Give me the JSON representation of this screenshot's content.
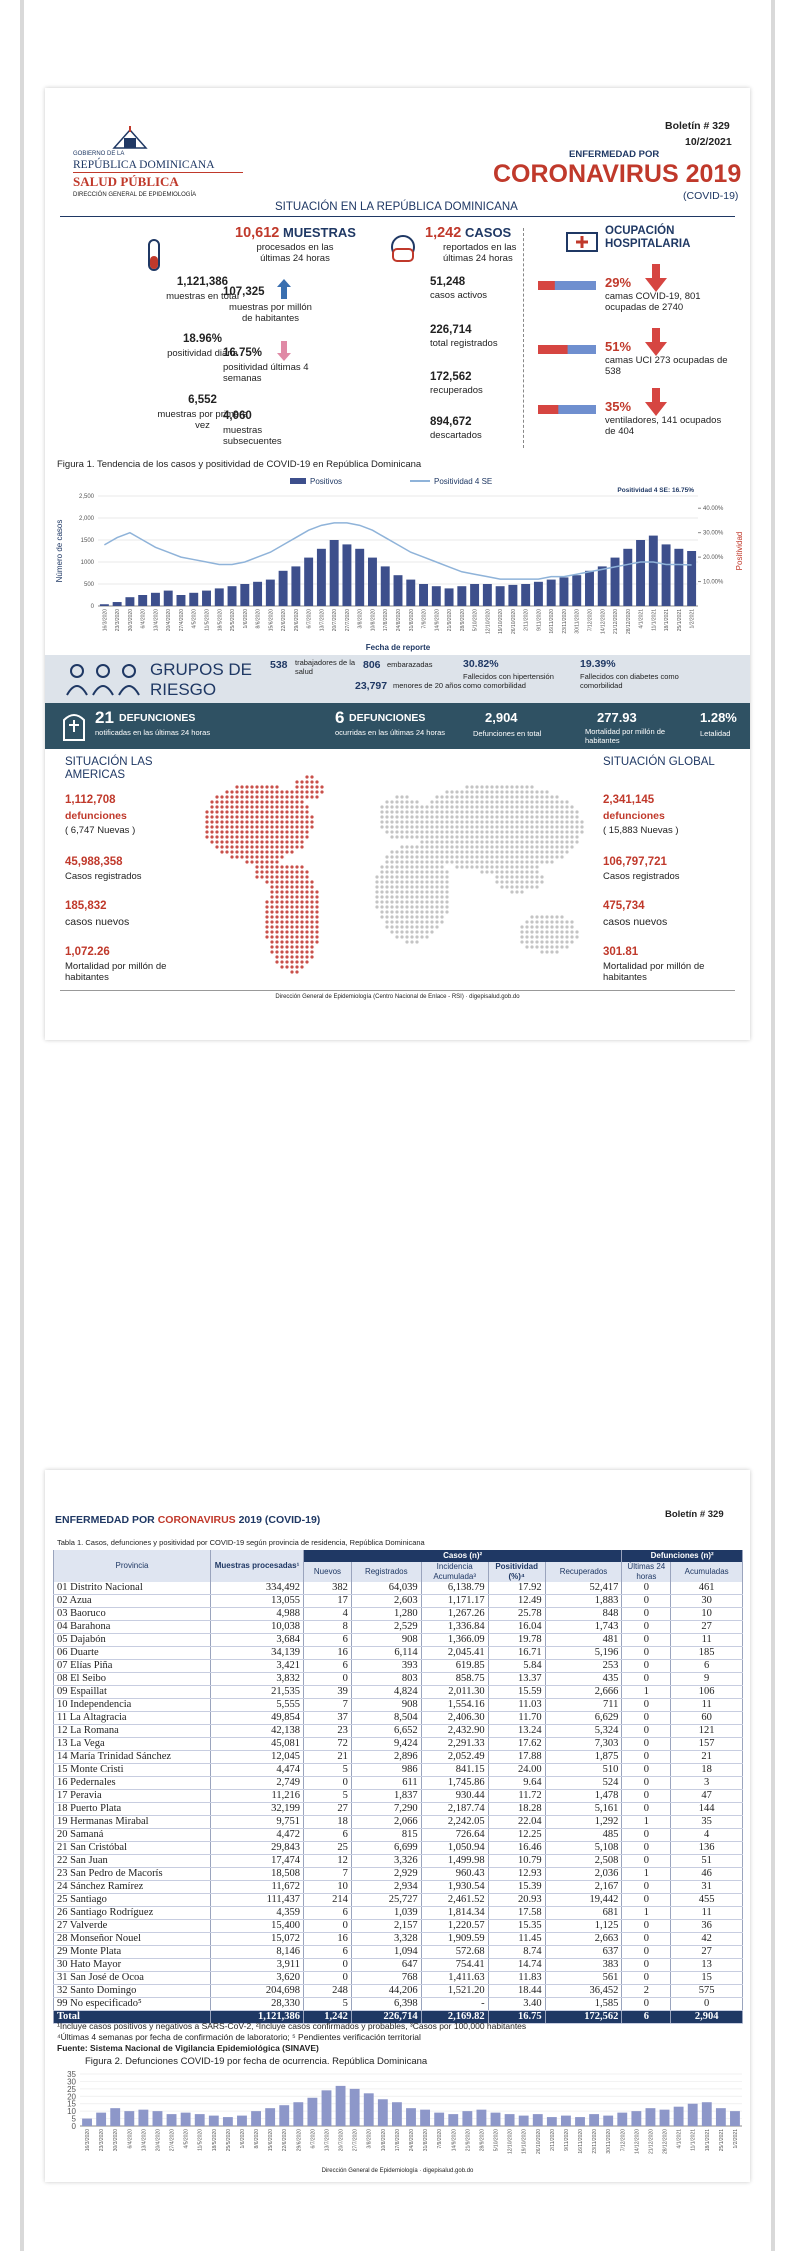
{
  "page1": {
    "header": {
      "gov_line1": "GOBIERNO DE LA",
      "gov_line2": "REPÚBLICA DOMINICANA",
      "gov_line3": "SALUD PÚBLICA",
      "gov_line4": "DIRECCIÓN GENERAL DE EPIDEMIOLOGÍA",
      "bulletin": "Boletín # 329",
      "date": "10/2/2021",
      "kicker": "ENFERMEDAD POR",
      "title": "CORONAVIRUS 2019",
      "subtitle": "(COVID-19)",
      "section": "SITUACIÓN EN LA REPÚBLICA DOMINICANA"
    },
    "samples": {
      "headline": "10,612",
      "headline_label": "MUESTRAS",
      "headline_sub": "procesados en las últimas 24 horas",
      "total": "1,121,386",
      "total_label": "muestras en total",
      "per_million": "107,325",
      "per_million_label": "muestras por millón de habitantes",
      "daily_positivity": "18.96%",
      "daily_positivity_label": "positividad diaria",
      "positivity_4w": "16.75%",
      "positivity_4w_label": "positividad últimas 4 semanas",
      "first_time": "6,552",
      "first_time_label": "muestras por primera vez",
      "subsequent": "4,060",
      "subsequent_label": "muestras subsecuentes"
    },
    "cases": {
      "headline": "1,242",
      "headline_label": "CASOS",
      "headline_sub": "reportados en las últimas 24 horas",
      "active": "51,248",
      "active_label": "casos activos",
      "total": "226,714",
      "total_label": "total registrados",
      "recovered": "172,562",
      "recovered_label": "recuperados",
      "discarded": "894,672",
      "discarded_label": "descartados"
    },
    "hospital": {
      "title": "OCUPACIÓN HOSPITALARIA",
      "items": [
        {
          "pct": {
            "value": 29,
            "label": "29%"
          },
          "text": "camas COVID-19, 801 ocupadas de 2740"
        },
        {
          "pct": {
            "value": 51,
            "label": "51%"
          },
          "text": "camas UCI 273 ocupadas de 538"
        },
        {
          "pct": {
            "value": 35,
            "label": "35%"
          },
          "text": "ventiladores, 141 ocupados de 404"
        }
      ]
    },
    "figure1": {
      "type": "bar",
      "caption": "Figura 1. Tendencia de los casos y positividad de COVID-19 en República Dominicana",
      "y_label": "Número de casos",
      "x_label": "Fecha de reporte",
      "y2_label": "Positividad",
      "annotation": "Positividad 4 SE: 16.75%",
      "categories": [
        "16/3/2020",
        "23/3/2020",
        "30/3/2020",
        "6/4/2020",
        "13/4/2020",
        "20/4/2020",
        "27/4/2020",
        "4/5/2020",
        "11/5/2020",
        "18/5/2020",
        "25/5/2020",
        "1/6/2020",
        "8/6/2020",
        "15/6/2020",
        "22/6/2020",
        "29/6/2020",
        "6/7/2020",
        "13/7/2020",
        "20/7/2020",
        "27/7/2020",
        "3/8/2020",
        "10/8/2020",
        "17/8/2020",
        "24/8/2020",
        "31/8/2020",
        "7/9/2020",
        "14/9/2020",
        "21/9/2020",
        "28/9/2020",
        "5/10/2020",
        "12/10/2020",
        "19/10/2020",
        "26/10/2020",
        "2/11/2020",
        "9/11/2020",
        "16/11/2020",
        "23/11/2020",
        "30/11/2020",
        "7/12/2020",
        "14/12/2020",
        "21/12/2020",
        "28/12/2020",
        "4/1/2021",
        "11/1/2021",
        "18/1/2021",
        "25/1/2021",
        "1/2/2021"
      ],
      "series": [
        {
          "name": "Positivos",
          "color": "#3d4f8c",
          "values": [
            40,
            90,
            200,
            250,
            300,
            350,
            250,
            300,
            350,
            400,
            450,
            500,
            550,
            600,
            800,
            900,
            1100,
            1300,
            1500,
            1400,
            1300,
            1100,
            900,
            700,
            600,
            500,
            450,
            400,
            450,
            500,
            500,
            450,
            480,
            500,
            550,
            600,
            650,
            700,
            800,
            900,
            1100,
            1300,
            1500,
            1600,
            1400,
            1300,
            1250
          ]
        },
        {
          "name": "Positividad 4 SE",
          "color": "#8fb3d9",
          "axis": "y2",
          "values": [
            25,
            28,
            30,
            27,
            24,
            22,
            20,
            19,
            18,
            17,
            17,
            18,
            20,
            22,
            25,
            28,
            31,
            33,
            34,
            34,
            33,
            31,
            28,
            25,
            22,
            20,
            18,
            16,
            14,
            13,
            12,
            11,
            11,
            11,
            11,
            12,
            12,
            13,
            14,
            15,
            16,
            17,
            18,
            18,
            17,
            17,
            16.75
          ]
        }
      ],
      "ylim": [
        0,
        2500
      ],
      "yticks": [
        0,
        500,
        1000,
        1500,
        {
          "value": 2000,
          "label": "2,000"
        },
        {
          "value": 2500,
          "label": "2,500"
        }
      ],
      "y2lim": [
        0,
        45
      ],
      "y2ticks": [
        {
          "value": 10,
          "label": "10.00%"
        },
        {
          "value": 20,
          "label": "20.00%"
        },
        {
          "value": 30,
          "label": "30.00%"
        },
        {
          "value": 40,
          "label": "40.00%"
        }
      ]
    },
    "risk_groups": {
      "title": "GRUPOS DE RIESGO",
      "health_workers": "538",
      "health_workers_label": "trabajadores de la salud",
      "pregnant": "806",
      "pregnant_label": "embarazadas",
      "under20": "23,797",
      "under20_label": "menores de 20 años",
      "hypertension": "30.82%",
      "hypertension_label": "Fallecidos con hipertensión como comorbilidad",
      "diabetes": "19.39%",
      "diabetes_label": "Fallecidos con diabetes como comorbilidad"
    },
    "deaths": {
      "notified": "21",
      "notified_title": "DEFUNCIONES",
      "notified_label": "notificadas en las últimas 24 horas",
      "occurred": "6",
      "occurred_title": "DEFUNCIONES",
      "occurred_label": "ocurridas en las últimas 24 horas",
      "total": "2,904",
      "total_label": "Defunciones en total",
      "mortality": "277.93",
      "mortality_label": "Mortalidad por millón de habitantes",
      "lethality": "1.28%",
      "lethality_label": "Letalidad"
    },
    "americas": {
      "title": "SITUACIÓN LAS AMERICAS",
      "deaths": "1,112,708",
      "deaths_label": "defunciones",
      "new_deaths": "( 6,747 Nuevas )",
      "cases": "45,988,358",
      "cases_label": "Casos registrados",
      "new_cases": "185,832",
      "new_cases_label": "casos nuevos",
      "mortality": "1,072.26",
      "mortality_label": "Mortalidad por millón de habitantes"
    },
    "global": {
      "title": "SITUACIÓN GLOBAL",
      "deaths": "2,341,145",
      "deaths_label": "defunciones",
      "new_deaths": "( 15,883 Nuevas )",
      "cases": "106,797,721",
      "cases_label": "Casos registrados",
      "new_cases": "475,734",
      "new_cases_label": "casos nuevos",
      "mortality": "301.81",
      "mortality_label": "Mortalidad por millón de habitantes"
    },
    "footer": "Dirección General de Epidemiología (Centro Nacional de Enlace - RSI) · digepisalud.gob.do"
  },
  "page2": {
    "header": {
      "part1": "ENFERMEDAD POR ",
      "part2": "CORONAVIRUS",
      "part3": " 2019 (COVID-19)",
      "bulletin": "Boletín # 329"
    },
    "table": {
      "caption": "Tabla 1. Casos, defunciones y positividad por COVID-19 según provincia de residencia, República Dominicana",
      "headers": {
        "province": "Provincia",
        "samples": "Muestras procesadas¹",
        "cases": "Casos (n)²",
        "new": "Nuevos",
        "registered": "Registrados",
        "incidence": "Incidencia Acumulada³",
        "positivity": "Positividad (%)⁴",
        "recovered": "Recuperados",
        "deaths": "Defunciones (n)²",
        "last24": "Últimas 24 horas",
        "cumulative": "Acumuladas"
      },
      "rows": [
        [
          "01 Distrito Nacional",
          "334,492",
          "382",
          "64,039",
          "6,138.79",
          "17.92",
          "52,417",
          "0",
          "461"
        ],
        [
          "02 Azua",
          "13,055",
          "17",
          "2,603",
          "1,171.17",
          "12.49",
          "1,883",
          "0",
          "30"
        ],
        [
          "03 Baoruco",
          "4,988",
          "4",
          "1,280",
          "1,267.26",
          "25.78",
          "848",
          "0",
          "10"
        ],
        [
          "04 Barahona",
          "10,038",
          "8",
          "2,529",
          "1,336.84",
          "16.04",
          "1,743",
          "0",
          "27"
        ],
        [
          "05 Dajabón",
          "3,684",
          "6",
          "908",
          "1,366.09",
          "19.78",
          "481",
          "0",
          "11"
        ],
        [
          "06 Duarte",
          "34,139",
          "16",
          "6,114",
          "2,045.41",
          "16.71",
          "5,196",
          "0",
          "185"
        ],
        [
          "07 Elías Piña",
          "3,421",
          "6",
          "393",
          "619.85",
          "5.84",
          "253",
          "0",
          "6"
        ],
        [
          "08 El Seibo",
          "3,832",
          "0",
          "803",
          "858.75",
          "13.37",
          "435",
          "0",
          "9"
        ],
        [
          "09 Espaillat",
          "21,535",
          "39",
          "4,824",
          "2,011.30",
          "15.59",
          "2,666",
          "1",
          "106"
        ],
        [
          "10 Independencia",
          "5,555",
          "7",
          "908",
          "1,554.16",
          "11.03",
          "711",
          "0",
          "11"
        ],
        [
          "11 La Altagracia",
          "49,854",
          "37",
          "8,504",
          "2,406.30",
          "11.70",
          "6,629",
          "0",
          "60"
        ],
        [
          "12 La Romana",
          "42,138",
          "23",
          "6,652",
          "2,432.90",
          "13.24",
          "5,324",
          "0",
          "121"
        ],
        [
          "13 La Vega",
          "45,081",
          "72",
          "9,424",
          "2,291.33",
          "17.62",
          "7,303",
          "0",
          "157"
        ],
        [
          "14 María Trinidad Sánchez",
          "12,045",
          "21",
          "2,896",
          "2,052.49",
          "17.88",
          "1,875",
          "0",
          "21"
        ],
        [
          "15 Monte Cristi",
          "4,474",
          "5",
          "986",
          "841.15",
          "24.00",
          "510",
          "0",
          "18"
        ],
        [
          "16 Pedernales",
          "2,749",
          "0",
          "611",
          "1,745.86",
          "9.64",
          "524",
          "0",
          "3"
        ],
        [
          "17 Peravia",
          "11,216",
          "5",
          "1,837",
          "930.44",
          "11.72",
          "1,478",
          "0",
          "47"
        ],
        [
          "18 Puerto Plata",
          "32,199",
          "27",
          "7,290",
          "2,187.74",
          "18.28",
          "5,161",
          "0",
          "144"
        ],
        [
          "19 Hermanas Mirabal",
          "9,751",
          "18",
          "2,066",
          "2,242.05",
          "22.04",
          "1,292",
          "1",
          "35"
        ],
        [
          "20 Samaná",
          "4,472",
          "6",
          "815",
          "726.64",
          "12.25",
          "485",
          "0",
          "4"
        ],
        [
          "21 San Cristóbal",
          "29,843",
          "25",
          "6,699",
          "1,050.94",
          "16.46",
          "5,108",
          "0",
          "136"
        ],
        [
          "22 San Juan",
          "17,474",
          "12",
          "3,326",
          "1,499.98",
          "10.79",
          "2,508",
          "0",
          "51"
        ],
        [
          "23 San Pedro de Macorís",
          "18,508",
          "7",
          "2,929",
          "960.43",
          "12.93",
          "2,036",
          "1",
          "46"
        ],
        [
          "24 Sánchez Ramírez",
          "11,672",
          "10",
          "2,934",
          "1,930.54",
          "15.39",
          "2,167",
          "0",
          "31"
        ],
        [
          "25 Santiago",
          "111,437",
          "214",
          "25,727",
          "2,461.52",
          "20.93",
          "19,442",
          "0",
          "455"
        ],
        [
          "26 Santiago Rodríguez",
          "4,359",
          "6",
          "1,039",
          "1,814.34",
          "17.58",
          "681",
          "1",
          "11"
        ],
        [
          "27 Valverde",
          "15,400",
          "0",
          "2,157",
          "1,220.57",
          "15.35",
          "1,125",
          "0",
          "36"
        ],
        [
          "28 Monseñor Nouel",
          "15,072",
          "16",
          "3,328",
          "1,909.59",
          "11.45",
          "2,663",
          "0",
          "42"
        ],
        [
          "29 Monte Plata",
          "8,146",
          "6",
          "1,094",
          "572.68",
          "8.74",
          "637",
          "0",
          "27"
        ],
        [
          "30 Hato Mayor",
          "3,911",
          "0",
          "647",
          "754.41",
          "14.74",
          "383",
          "0",
          "13"
        ],
        [
          "31 San José de Ocoa",
          "3,620",
          "0",
          "768",
          "1,411.63",
          "11.83",
          "561",
          "0",
          "15"
        ],
        [
          "32 Santo Domingo",
          "204,698",
          "248",
          "44,206",
          "1,521.20",
          "18.44",
          "36,452",
          "2",
          "575"
        ],
        [
          "99 No especificado⁵",
          "28,330",
          "5",
          "6,398",
          "-",
          "3.40",
          "1,585",
          "0",
          "0"
        ]
      ],
      "total": [
        "Total",
        "1,121,386",
        "1,242",
        "226,714",
        "2,169.82",
        "16.75",
        "172,562",
        "6",
        "2,904"
      ]
    },
    "footnotes": [
      "¹Incluye casos positivos y negativos a SARS-CoV-2, ²Incluye casos confirmados y probables, ³Casos por 100,000 habitantes",
      "⁴Últimas 4 semanas por fecha de confirmación de laboratorio; ⁵ Pendientes verificación territorial",
      "Fuente: Sistema Nacional de Vigilancia Epidemiológica (SINAVE)"
    ],
    "figure2": {
      "type": "bar",
      "caption": "Figura 2. Defunciones COVID-19 por fecha de ocurrencia. República Dominicana",
      "color": "#8d97c9",
      "categories": [
        "16/3/2020",
        "23/3/2020",
        "30/3/2020",
        "6/4/2020",
        "13/4/2020",
        "20/4/2020",
        "27/4/2020",
        "4/5/2020",
        "11/5/2020",
        "18/5/2020",
        "25/5/2020",
        "1/6/2020",
        "8/6/2020",
        "15/6/2020",
        "22/6/2020",
        "29/6/2020",
        "6/7/2020",
        "13/7/2020",
        "20/7/2020",
        "27/7/2020",
        "3/8/2020",
        "10/8/2020",
        "17/8/2020",
        "24/8/2020",
        "31/8/2020",
        "7/9/2020",
        "14/9/2020",
        "21/9/2020",
        "28/9/2020",
        "5/10/2020",
        "12/10/2020",
        "19/10/2020",
        "26/10/2020",
        "2/11/2020",
        "9/11/2020",
        "16/11/2020",
        "23/11/2020",
        "30/11/2020",
        "7/12/2020",
        "14/12/2020",
        "21/12/2020",
        "28/12/2020",
        "4/1/2021",
        "11/1/2021",
        "18/1/2021",
        "25/1/2021",
        "1/2/2021"
      ],
      "values": [
        5,
        9,
        12,
        10,
        11,
        10,
        8,
        9,
        8,
        7,
        6,
        7,
        10,
        12,
        14,
        16,
        19,
        24,
        27,
        25,
        22,
        18,
        16,
        12,
        11,
        9,
        8,
        10,
        11,
        9,
        8,
        7,
        8,
        6,
        7,
        6,
        8,
        7,
        9,
        10,
        12,
        11,
        13,
        15,
        16,
        12,
        10
      ],
      "ylim": [
        0,
        35
      ],
      "yticks": [
        0,
        5,
        10,
        15,
        20,
        25,
        30,
        35
      ]
    },
    "footer": "Dirección General de Epidemiología · digepisalud.gob.do"
  }
}
